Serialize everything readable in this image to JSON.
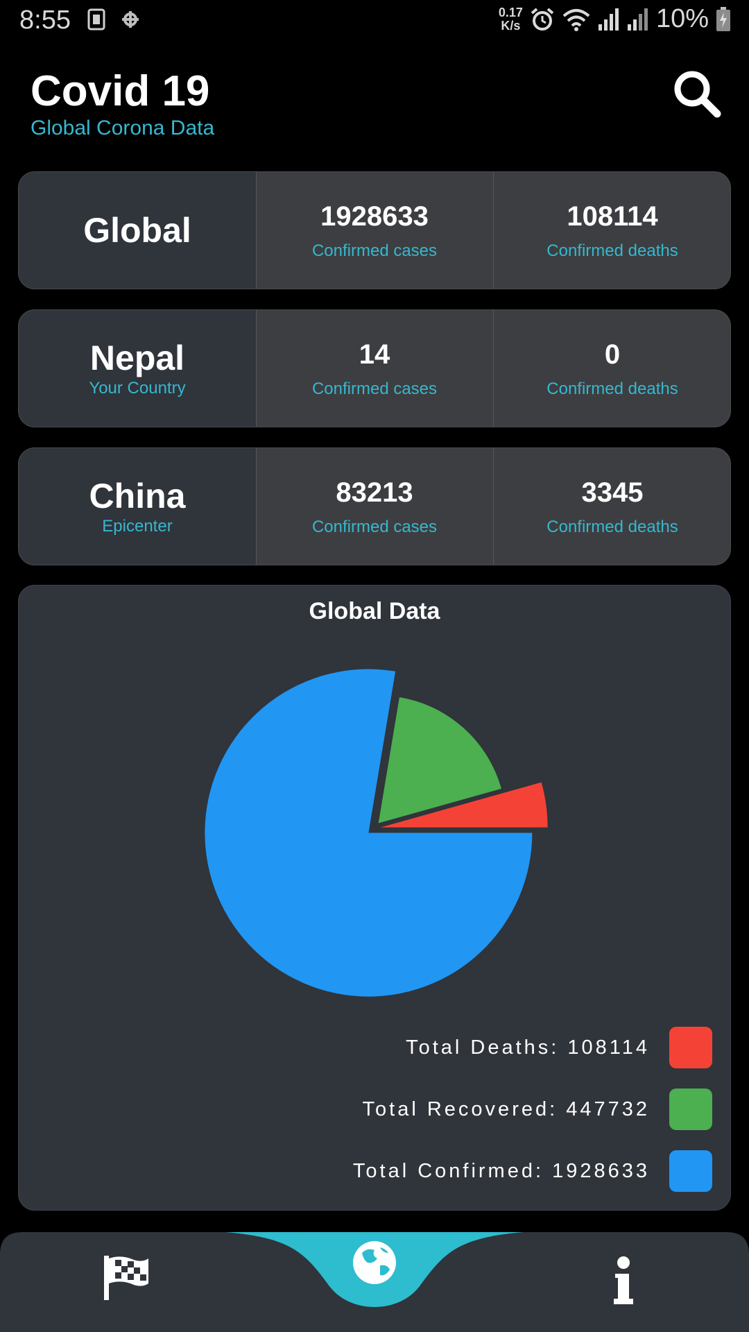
{
  "status_bar": {
    "time": "8:55",
    "speed_value": "0.17",
    "speed_unit": "K/s",
    "battery": "10%"
  },
  "header": {
    "title": "Covid 19",
    "subtitle": "Global Corona Data",
    "search_icon": "search-icon"
  },
  "cards": [
    {
      "name": "Global",
      "sub": "",
      "cases": "1928633",
      "cases_label": "Confirmed cases",
      "deaths": "108114",
      "deaths_label": "Confirmed deaths"
    },
    {
      "name": "Nepal",
      "sub": "Your Country",
      "cases": "14",
      "cases_label": "Confirmed cases",
      "deaths": "0",
      "deaths_label": "Confirmed deaths"
    },
    {
      "name": "China",
      "sub": "Epicenter",
      "cases": "83213",
      "cases_label": "Confirmed cases",
      "deaths": "3345",
      "deaths_label": "Confirmed deaths"
    }
  ],
  "chart_data": {
    "type": "pie",
    "title": "Global Data",
    "categories": [
      "Total Deaths",
      "Total Recovered",
      "Total Confirmed"
    ],
    "values": [
      108114,
      447732,
      1928633
    ],
    "colors": [
      "#f44336",
      "#4caf50",
      "#2196f3"
    ],
    "legend_placement": "bottom-right",
    "legend": [
      {
        "text": "Total Deaths: 108114",
        "color": "#f44336"
      },
      {
        "text": "Total Recovered: 447732",
        "color": "#4caf50"
      },
      {
        "text": "Total Confirmed: 1928633",
        "color": "#2196f3"
      }
    ]
  },
  "nav": {
    "items": [
      {
        "icon": "checkered-flag-icon"
      },
      {
        "icon": "globe-icon",
        "active": true
      },
      {
        "icon": "info-icon"
      }
    ],
    "accent": "#2ebccf",
    "background": "#30343b"
  }
}
